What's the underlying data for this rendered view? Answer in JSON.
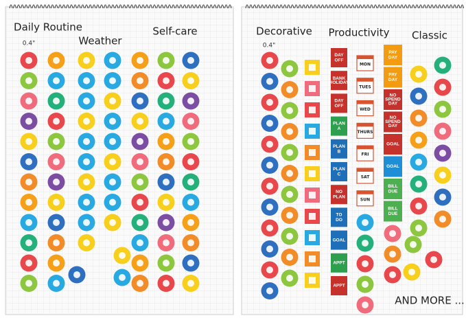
{
  "sheets": [
    {
      "sections": [
        "Daily Routine",
        "Weather",
        "Self-care"
      ],
      "size_note": "0.4\""
    },
    {
      "sections": [
        "Decorative",
        "Productivity",
        "Classic"
      ],
      "size_note": "0.4\"",
      "planner_labels": [
        [
          "DAY",
          "OFF"
        ],
        [
          "BANK",
          "HOLIDAY"
        ],
        [
          "DAY",
          "OFF"
        ],
        [
          "PLAN",
          "A"
        ],
        [
          "PLAN",
          "B"
        ],
        [
          "PLAN",
          "C"
        ],
        [
          "NO",
          "PLAN"
        ],
        [
          "TO",
          "DO"
        ],
        [
          "GOAL"
        ],
        [
          "APPT"
        ],
        [
          "APPT"
        ]
      ],
      "day_labels": [
        "MON",
        "TUES",
        "WED",
        "THURS",
        "FRI",
        "SAT",
        "SUN"
      ],
      "money_labels": [
        [
          "PAY",
          "DAY"
        ],
        [
          "PAY",
          "DAY"
        ],
        [
          "NO",
          "SPEND",
          "DAY"
        ],
        [
          "NO",
          "SPEND",
          "DAY"
        ],
        [
          "GOAL"
        ],
        [
          "GOAL"
        ],
        [
          "BILL",
          "DUE"
        ],
        [
          "BILL",
          "DUE"
        ]
      ],
      "footer": "AND MORE ..."
    }
  ]
}
